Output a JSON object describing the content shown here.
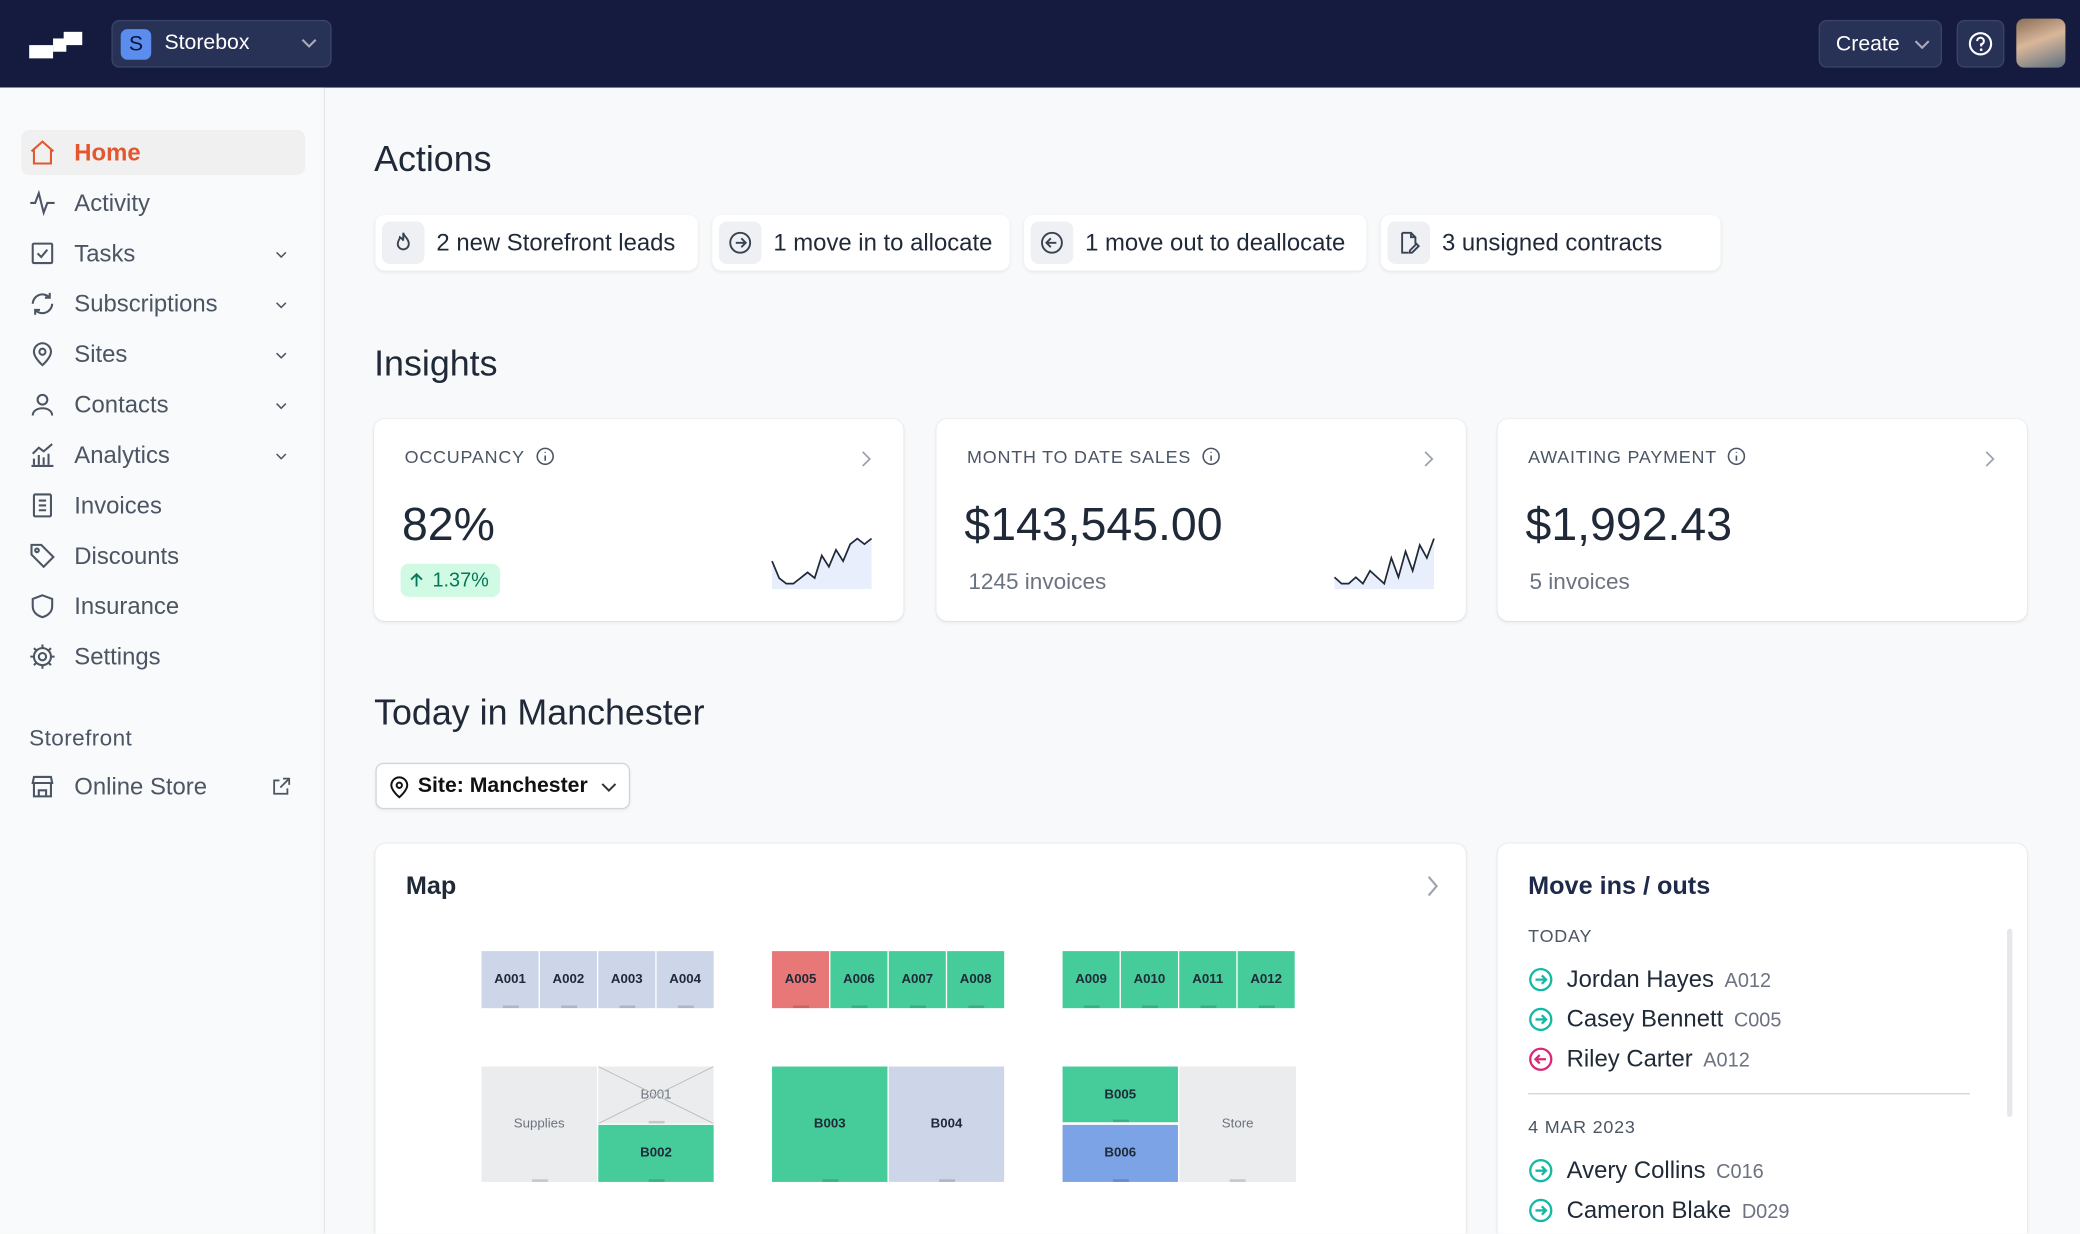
{
  "header": {
    "workspace_initial": "S",
    "workspace": "Storebox",
    "create": "Create"
  },
  "sidebar": {
    "nav": [
      "Home",
      "Activity",
      "Tasks",
      "Subscriptions",
      "Sites",
      "Contacts",
      "Analytics",
      "Invoices",
      "Discounts",
      "Insurance",
      "Settings"
    ],
    "section": "Storefront",
    "section_items": [
      "Online Store"
    ]
  },
  "actions": {
    "title": "Actions",
    "items": [
      "2 new Storefront leads",
      "1 move in to allocate",
      "1 move out to deallocate",
      "3 unsigned contracts"
    ]
  },
  "insights": {
    "title": "Insights",
    "cards": [
      {
        "label": "OCCUPANCY",
        "value": "82%",
        "badge": "1.37%",
        "sparkline": [
          5,
          2,
          1,
          1,
          2,
          3,
          2,
          6,
          4,
          7,
          5,
          8,
          9,
          8,
          9
        ]
      },
      {
        "label": "MONTH TO DATE SALES",
        "value": "$143,545.00",
        "sub": "1245 invoices",
        "sparkline": [
          3,
          2,
          2,
          3,
          2,
          4,
          3,
          2,
          6,
          3,
          7,
          4,
          8,
          6,
          9
        ]
      },
      {
        "label": "AWAITING PAYMENT",
        "value": "$1,992.43",
        "sub": "5 invoices"
      }
    ]
  },
  "today": {
    "title": "Today in Manchester",
    "site": "Site: Manchester"
  },
  "map": {
    "title": "Map",
    "units": [
      {
        "label": "A001",
        "color": "#cdd5e8"
      },
      {
        "label": "A002",
        "color": "#cdd5e8"
      },
      {
        "label": "A003",
        "color": "#cdd5e8"
      },
      {
        "label": "A004",
        "color": "#cdd5e8"
      },
      {
        "label": "A005",
        "color": "#e87777"
      },
      {
        "label": "A006",
        "color": "#46cc9a"
      },
      {
        "label": "A007",
        "color": "#46cc9a"
      },
      {
        "label": "A008",
        "color": "#46cc9a"
      },
      {
        "label": "A009",
        "color": "#46cc9a"
      },
      {
        "label": "A010",
        "color": "#46cc9a"
      },
      {
        "label": "A011",
        "color": "#46cc9a"
      },
      {
        "label": "A012",
        "color": "#46cc9a"
      },
      {
        "label": "Supplies",
        "color": "#ebecee"
      },
      {
        "label": "B001",
        "color": "#ebecee"
      },
      {
        "label": "B002",
        "color": "#46cc9a"
      },
      {
        "label": "B003",
        "color": "#46cc9a"
      },
      {
        "label": "B004",
        "color": "#cdd5e8"
      },
      {
        "label": "B005",
        "color": "#46cc9a"
      },
      {
        "label": "B006",
        "color": "#7ba3e6"
      },
      {
        "label": "Store",
        "color": "#ebecee"
      }
    ]
  },
  "moves": {
    "title": "Move ins / outs",
    "groups": [
      {
        "label": "TODAY",
        "entries": [
          {
            "name": "Jordan Hayes",
            "unit": "A012",
            "direction": "in"
          },
          {
            "name": "Casey Bennett",
            "unit": "C005",
            "direction": "in"
          },
          {
            "name": "Riley Carter",
            "unit": "A012",
            "direction": "out"
          }
        ]
      },
      {
        "label": "4 MAR 2023",
        "entries": [
          {
            "name": "Avery Collins",
            "unit": "C016",
            "direction": "in"
          },
          {
            "name": "Cameron Blake",
            "unit": "D029",
            "direction": "in"
          }
        ]
      }
    ]
  }
}
